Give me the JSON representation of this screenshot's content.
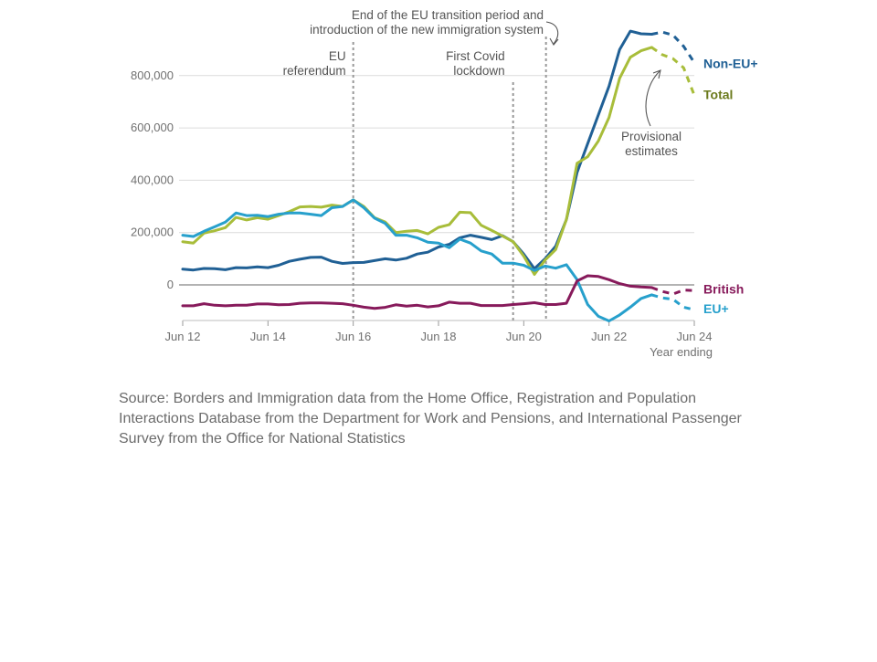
{
  "chart_data": {
    "type": "line",
    "title": "",
    "xlabel": "Year ending",
    "ylabel": "",
    "x_tick_labels": [
      "Jun 12",
      "Jun 14",
      "Jun 16",
      "Jun 18",
      "Jun 20",
      "Jun 22",
      "Jun 24"
    ],
    "y_tick_labels": [
      "0",
      "200,000",
      "400,000",
      "600,000",
      "800,000"
    ],
    "ylim": [
      -150000,
      950000
    ],
    "grid": true,
    "x": [
      "Jun 12",
      "Sep 12",
      "Dec 12",
      "Mar 13",
      "Jun 13",
      "Sep 13",
      "Dec 13",
      "Mar 14",
      "Jun 14",
      "Sep 14",
      "Dec 14",
      "Mar 15",
      "Jun 15",
      "Sep 15",
      "Dec 15",
      "Mar 16",
      "Jun 16",
      "Sep 16",
      "Dec 16",
      "Mar 17",
      "Jun 17",
      "Sep 17",
      "Dec 17",
      "Mar 18",
      "Jun 18",
      "Sep 18",
      "Dec 18",
      "Mar 19",
      "Jun 19",
      "Sep 19",
      "Dec 19",
      "Mar 20",
      "Jun 20",
      "Sep 20",
      "Dec 20",
      "Mar 21",
      "Jun 21",
      "Sep 21",
      "Dec 21",
      "Mar 22",
      "Jun 22",
      "Sep 22",
      "Dec 22",
      "Mar 23",
      "Jun 23",
      "Sep 23",
      "Dec 23",
      "Mar 24",
      "Jun 24"
    ],
    "provisional_from": "Jun 23",
    "series": [
      {
        "name": "Non-EU+",
        "color": "#206095",
        "values": [
          60000,
          57000,
          63000,
          62000,
          58000,
          66000,
          65000,
          69000,
          66000,
          75000,
          90000,
          98000,
          105000,
          106000,
          90000,
          82000,
          85000,
          86000,
          93000,
          100000,
          95000,
          102000,
          118000,
          125000,
          145000,
          155000,
          180000,
          190000,
          182000,
          173000,
          188000,
          165000,
          118000,
          62000,
          100000,
          148000,
          250000,
          430000,
          540000,
          650000,
          760000,
          900000,
          970000,
          960000,
          958000,
          966000,
          955000,
          912000,
          850000
        ]
      },
      {
        "name": "Total",
        "color": "#a8bd3a",
        "values": [
          165000,
          160000,
          198000,
          207000,
          219000,
          258000,
          248000,
          257000,
          251000,
          265000,
          280000,
          298000,
          300000,
          297000,
          305000,
          300000,
          325000,
          300000,
          257000,
          240000,
          200000,
          205000,
          208000,
          195000,
          220000,
          230000,
          278000,
          276000,
          228000,
          208000,
          187000,
          165000,
          110000,
          40000,
          95000,
          135000,
          250000,
          465000,
          490000,
          550000,
          640000,
          790000,
          870000,
          895000,
          908000,
          880000,
          865000,
          830000,
          725000
        ]
      },
      {
        "name": "EU+",
        "color": "#27a0cc",
        "values": [
          190000,
          185000,
          205000,
          222000,
          240000,
          275000,
          265000,
          266000,
          261000,
          270000,
          275000,
          275000,
          270000,
          265000,
          295000,
          300000,
          325000,
          295000,
          255000,
          235000,
          190000,
          190000,
          180000,
          163000,
          160000,
          142000,
          175000,
          160000,
          130000,
          118000,
          83000,
          83000,
          75000,
          55000,
          72000,
          64000,
          77000,
          20000,
          -75000,
          -120000,
          -138000,
          -115000,
          -85000,
          -52000,
          -38000,
          -50000,
          -55000,
          -85000,
          -95000
        ]
      },
      {
        "name": "British",
        "color": "#871a5b",
        "values": [
          -80000,
          -80000,
          -72000,
          -78000,
          -80000,
          -78000,
          -78000,
          -73000,
          -73000,
          -76000,
          -75000,
          -70000,
          -69000,
          -69000,
          -70000,
          -72000,
          -78000,
          -85000,
          -90000,
          -86000,
          -76000,
          -81000,
          -78000,
          -84000,
          -80000,
          -66000,
          -70000,
          -70000,
          -79000,
          -79000,
          -79000,
          -75000,
          -72000,
          -68000,
          -75000,
          -75000,
          -70000,
          15000,
          35000,
          32000,
          20000,
          5000,
          -5000,
          -8000,
          -10000,
          -25000,
          -35000,
          -20000,
          -22000
        ]
      }
    ],
    "annotations": [
      {
        "id": "eu-referendum",
        "lines": [
          "EU",
          "referendum"
        ],
        "x_index": 16
      },
      {
        "id": "covid-lockdown",
        "lines": [
          "First Covid",
          "lockdown"
        ],
        "x_index": 31
      },
      {
        "id": "transition-end",
        "lines": [
          "End of the EU transition period and",
          "introduction of the new immigration system"
        ],
        "x_index": 34
      },
      {
        "id": "provisional",
        "lines": [
          "Provisional",
          "estimates"
        ],
        "x_index": 44
      }
    ]
  },
  "source_note": "Source: Borders and Immigration data from the Home Office, Registration and Population Interactions Database from the Department for Work and Pensions, and International Passenger Survey from the Office for National Statistics"
}
